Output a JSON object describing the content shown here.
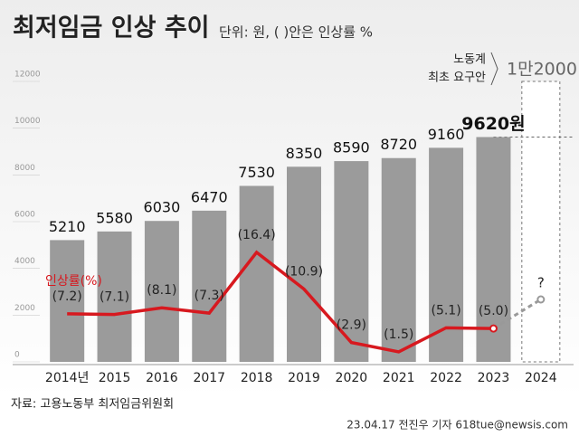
{
  "chart_data": {
    "type": "bar_line",
    "title": "최저임금 인상 추이",
    "subtitle": "단위: 원, ( )안은 인상률 %",
    "categories": [
      "2014년",
      "2015",
      "2016",
      "2017",
      "2018",
      "2019",
      "2020",
      "2021",
      "2022",
      "2023",
      "2024"
    ],
    "series": [
      {
        "name": "최저임금",
        "color": "#9b9b9b",
        "type": "bar",
        "values": [
          5210,
          5580,
          6030,
          6470,
          7530,
          8350,
          8590,
          8720,
          9160,
          9620,
          null
        ],
        "value_labels": [
          "5210",
          "5580",
          "6030",
          "6470",
          "7530",
          "8350",
          "8590",
          "8720",
          "9160",
          "9620원",
          null
        ]
      },
      {
        "name": "인상률(%)",
        "color": "#d7191f",
        "type": "line",
        "axis": "y2",
        "values": [
          7.2,
          7.1,
          8.1,
          7.3,
          16.4,
          10.9,
          2.9,
          1.5,
          5.1,
          5.0,
          null
        ],
        "value_labels": [
          "(7.2)",
          "(7.1)",
          "(8.1)",
          "(7.3)",
          "(16.4)",
          "(10.9)",
          "(2.9)",
          "(1.5)",
          "(5.1)",
          "(5.0)",
          null
        ]
      }
    ],
    "ylim": [
      0,
      12000
    ],
    "yticks": [
      0,
      2000,
      4000,
      6000,
      8000,
      10000,
      12000
    ],
    "y2lim": [
      0,
      42
    ],
    "demand": {
      "lines": [
        "노동계",
        "최초 요구안"
      ],
      "value": 12000,
      "label": "1만2000"
    },
    "unknown_label": "?",
    "source": "자료: 고용노동부 최저임금위원회",
    "credit": "23.04.17 전진우 기자 618tue@newsis.com"
  }
}
